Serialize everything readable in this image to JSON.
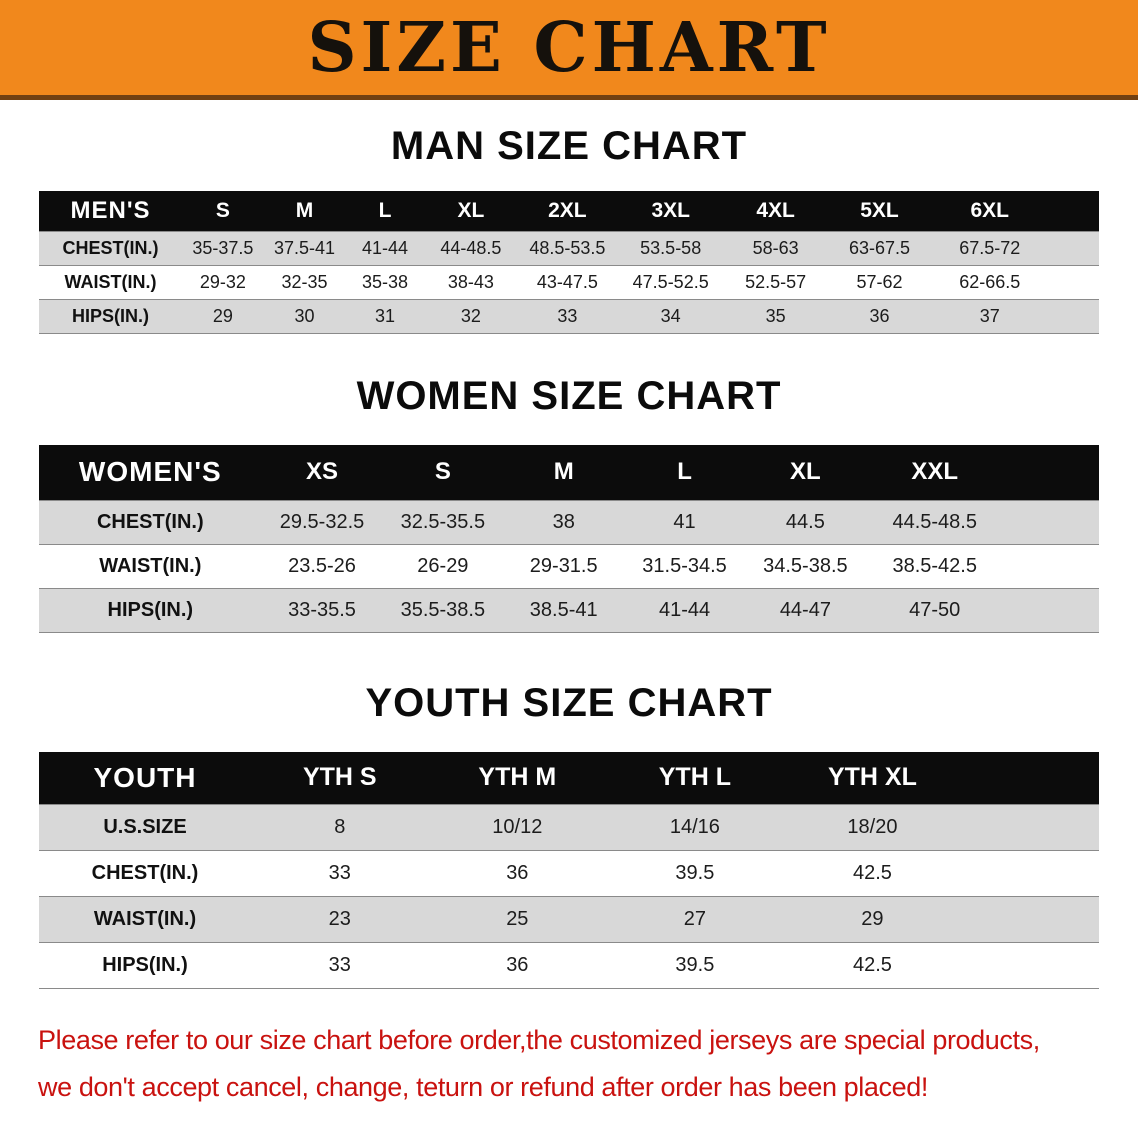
{
  "banner": {
    "title": "SIZE CHART",
    "bg_color": "#f1881c"
  },
  "men": {
    "heading": "MAN SIZE CHART",
    "header": [
      "MEN'S",
      "S",
      "M",
      "L",
      "XL",
      "2XL",
      "3XL",
      "4XL",
      "5XL",
      "6XL"
    ],
    "rows": [
      [
        "CHEST(IN.)",
        "35-37.5",
        "37.5-41",
        "41-44",
        "44-48.5",
        "48.5-53.5",
        "53.5-58",
        "58-63",
        "63-67.5",
        "67.5-72"
      ],
      [
        "WAIST(IN.)",
        "29-32",
        "32-35",
        "35-38",
        "38-43",
        "43-47.5",
        "47.5-52.5",
        "52.5-57",
        "57-62",
        "62-66.5"
      ],
      [
        "HIPS(IN.)",
        "29",
        "30",
        "31",
        "32",
        "33",
        "34",
        "35",
        "36",
        "37"
      ]
    ]
  },
  "women": {
    "heading": "WOMEN SIZE CHART",
    "header": [
      "WOMEN'S",
      "XS",
      "S",
      "M",
      "L",
      "XL",
      "XXL"
    ],
    "rows": [
      [
        "CHEST(IN.)",
        "29.5-32.5",
        "32.5-35.5",
        "38",
        "41",
        "44.5",
        "44.5-48.5"
      ],
      [
        "WAIST(IN.)",
        "23.5-26",
        "26-29",
        "29-31.5",
        "31.5-34.5",
        "34.5-38.5",
        "38.5-42.5"
      ],
      [
        "HIPS(IN.)",
        "33-35.5",
        "35.5-38.5",
        "38.5-41",
        "41-44",
        "44-47",
        "47-50"
      ]
    ]
  },
  "youth": {
    "heading": "YOUTH SIZE CHART",
    "header": [
      "YOUTH",
      "YTH S",
      "YTH M",
      "YTH L",
      "YTH XL"
    ],
    "rows": [
      [
        "U.S.SIZE",
        "8",
        "10/12",
        "14/16",
        "18/20"
      ],
      [
        "CHEST(IN.)",
        "33",
        "36",
        "39.5",
        "42.5"
      ],
      [
        "WAIST(IN.)",
        "23",
        "25",
        "27",
        "29"
      ],
      [
        "HIPS(IN.)",
        "33",
        "36",
        "39.5",
        "42.5"
      ]
    ]
  },
  "footer": {
    "line1": "Please refer to our size chart before order,the customized jerseys are special products,",
    "line2": "we don't accept cancel, change, teturn or refund after order has been placed!",
    "text_color": "#c9120f"
  }
}
